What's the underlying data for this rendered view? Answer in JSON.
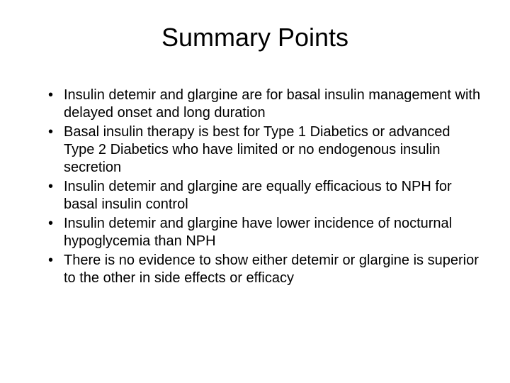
{
  "slide": {
    "title": "Summary Points",
    "title_fontsize": 36,
    "body_fontsize": 20,
    "background_color": "#ffffff",
    "text_color": "#000000",
    "bullets": [
      "Insulin detemir and glargine are for basal insulin management with delayed onset and long duration",
      "Basal insulin therapy is best for Type 1 Diabetics or advanced Type 2 Diabetics who have limited or no endogenous insulin secretion",
      "Insulin detemir and glargine are equally efficacious to NPH for basal insulin control",
      "Insulin detemir and glargine have lower incidence of nocturnal hypoglycemia than NPH",
      "There is no evidence to show either detemir or glargine is superior to the other in side effects or efficacy"
    ]
  }
}
